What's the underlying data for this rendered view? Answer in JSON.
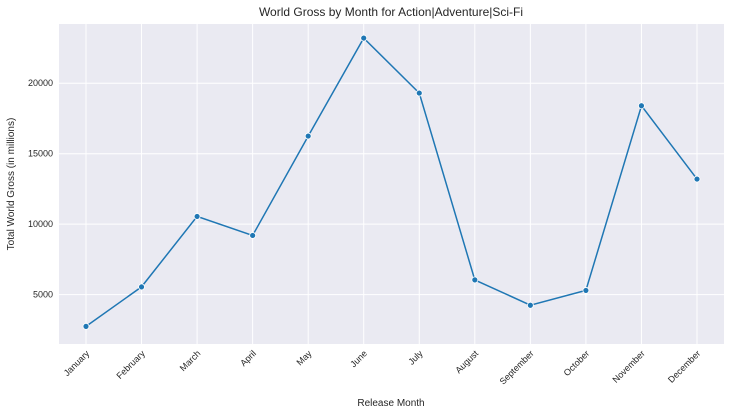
{
  "chart_data": {
    "type": "line",
    "title": "World Gross by Month for Action|Adventure|Sci-Fi",
    "xlabel": "Release Month",
    "ylabel": "Total World Gross (in millions)",
    "categories": [
      "January",
      "February",
      "March",
      "April",
      "May",
      "June",
      "July",
      "August",
      "September",
      "October",
      "November",
      "December"
    ],
    "values": [
      2750,
      5550,
      10550,
      9200,
      16250,
      23200,
      19300,
      6050,
      4250,
      5300,
      18400,
      13200
    ],
    "ylim": [
      1500,
      24200
    ],
    "yticks": [
      5000,
      10000,
      15000,
      20000
    ],
    "grid": true,
    "background_color": "#eaeaf2",
    "line_color": "#1f77b4"
  }
}
